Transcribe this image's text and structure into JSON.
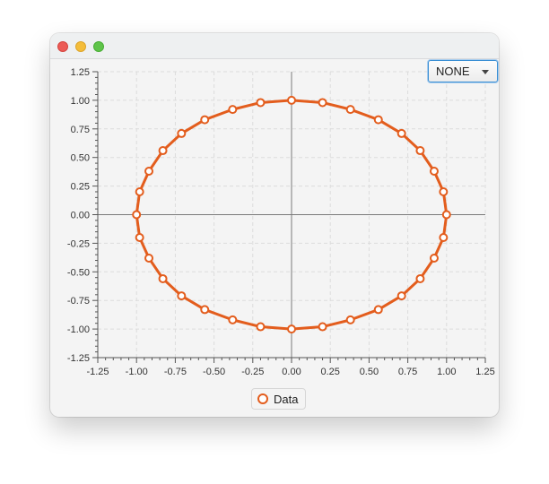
{
  "window": {
    "controls": [
      "close",
      "minimize",
      "maximize"
    ]
  },
  "combo": {
    "selected": "NONE"
  },
  "colors": {
    "series": "#e35d1d",
    "gridline": "#dcdcdc",
    "axis": "#555555"
  },
  "chart_data": {
    "type": "line",
    "title": "",
    "xlabel": "",
    "ylabel": "",
    "xlim": [
      -1.25,
      1.25
    ],
    "ylim": [
      -1.25,
      1.25
    ],
    "xticks": [
      "-1.25",
      "-1.00",
      "-0.75",
      "-0.50",
      "-0.25",
      "0.00",
      "0.25",
      "0.50",
      "0.75",
      "1.00",
      "1.25"
    ],
    "yticks": [
      "1.25",
      "1.00",
      "0.75",
      "0.50",
      "0.25",
      "0.00",
      "-0.25",
      "-0.50",
      "-0.75",
      "-1.00",
      "-1.25"
    ],
    "grid": true,
    "legend": "bottom-center",
    "series": [
      {
        "name": "Data",
        "color": "#e35d1d",
        "x": [
          1.0,
          0.98,
          0.92,
          0.83,
          0.71,
          0.56,
          0.38,
          0.2,
          0.0,
          -0.2,
          -0.38,
          -0.56,
          -0.71,
          -0.83,
          -0.92,
          -0.98,
          -1.0,
          -0.98,
          -0.92,
          -0.83,
          -0.71,
          -0.56,
          -0.38,
          -0.2,
          0.0,
          0.2,
          0.38,
          0.56,
          0.71,
          0.83,
          0.92,
          0.98,
          1.0
        ],
        "y": [
          0.0,
          0.2,
          0.38,
          0.56,
          0.71,
          0.83,
          0.92,
          0.98,
          1.0,
          0.98,
          0.92,
          0.83,
          0.71,
          0.56,
          0.38,
          0.2,
          0.0,
          -0.2,
          -0.38,
          -0.56,
          -0.71,
          -0.83,
          -0.92,
          -0.98,
          -1.0,
          -0.98,
          -0.92,
          -0.83,
          -0.71,
          -0.56,
          -0.38,
          -0.2,
          0.0
        ]
      }
    ]
  }
}
